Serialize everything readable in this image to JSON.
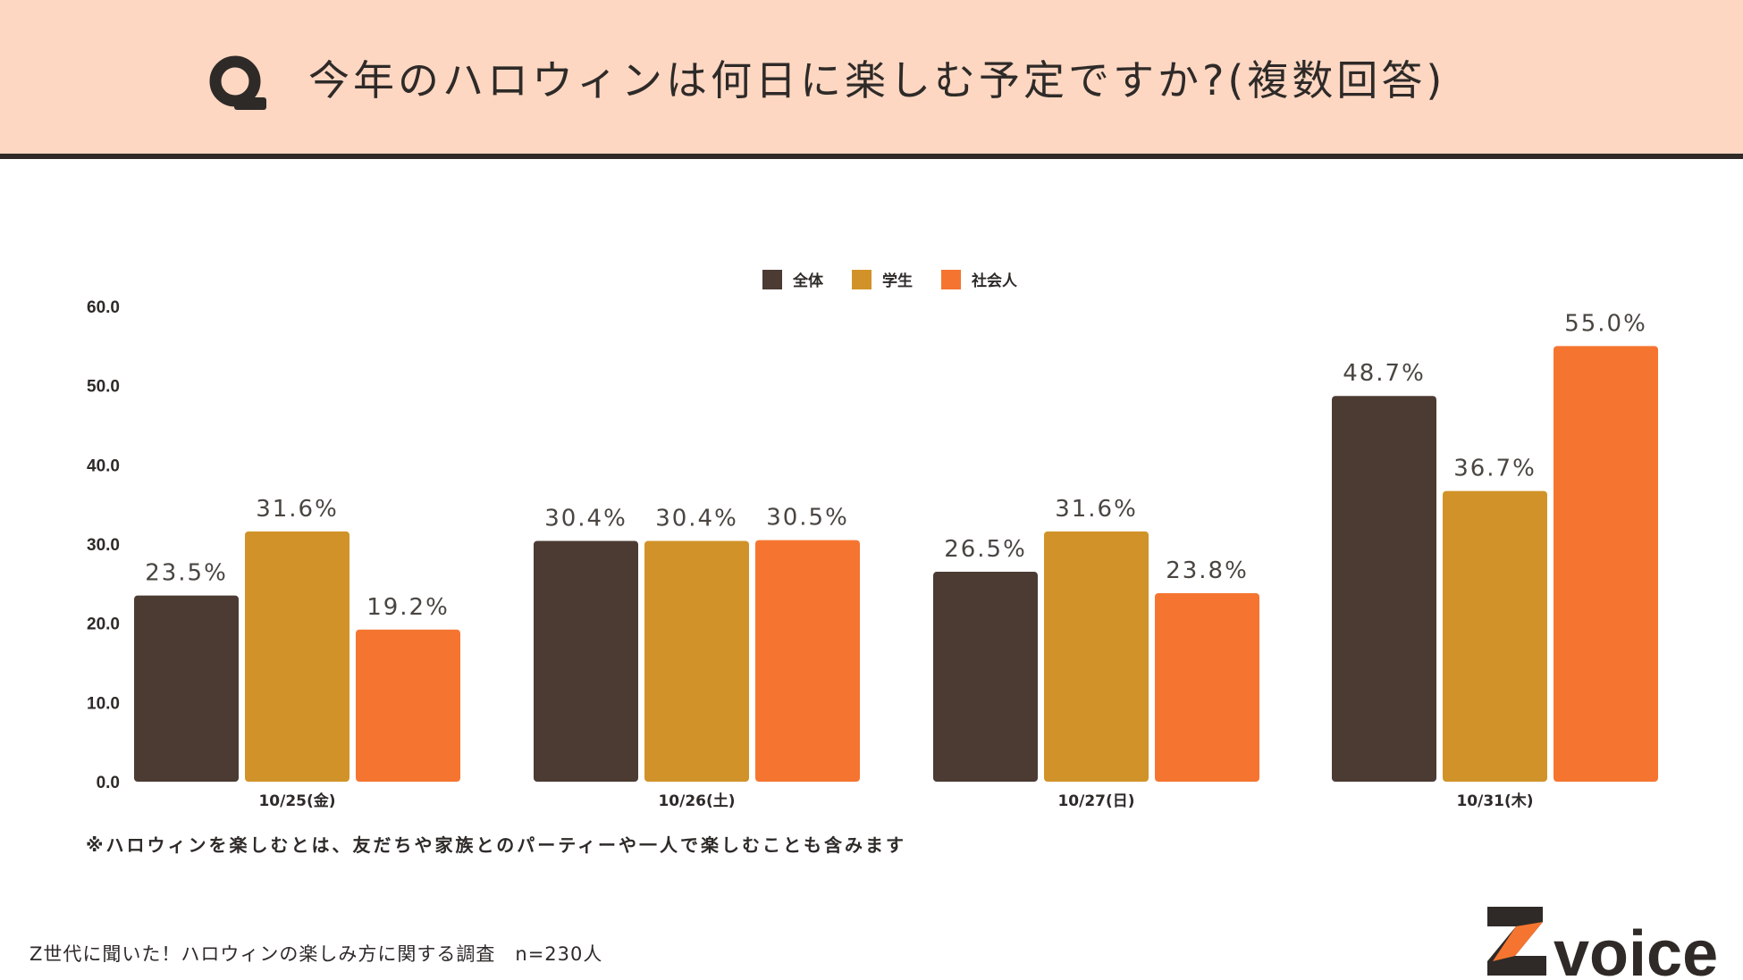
{
  "header": {
    "title": "今年のハロウィンは何日に楽しむ予定ですか?(複数回答)",
    "icon": "q-icon"
  },
  "note": "※ハロウィンを楽しむとは、友だちや家族とのパーティーや一人で楽しむことも含みます",
  "footer": {
    "survey": "Z世代に聞いた！ハロウィンの楽しみ方に関する調査　n=230人",
    "logo_text": "voice",
    "logo_letter": "Z"
  },
  "colors": {
    "header_bg": "#fdd7c2",
    "all": "#4b3b33",
    "student": "#d19329",
    "worker": "#f57530"
  },
  "chart_data": {
    "type": "bar",
    "title": "今年のハロウィンは何日に楽しむ予定ですか?(複数回答)",
    "xlabel": "",
    "ylabel": "",
    "ylim": [
      0,
      60
    ],
    "yticks": [
      "0.0",
      "10.0",
      "20.0",
      "30.0",
      "40.0",
      "50.0",
      "60.0"
    ],
    "grid": false,
    "legend_position": "top-center",
    "categories": [
      "10/25(金)",
      "10/26(土)",
      "10/27(日)",
      "10/31(木)"
    ],
    "series": [
      {
        "name": "全体",
        "color": "#4b3b33",
        "values": [
          23.5,
          30.4,
          26.5,
          48.7
        ],
        "labels": [
          "23.5%",
          "30.4%",
          "26.5%",
          "48.7%"
        ]
      },
      {
        "name": "学生",
        "color": "#d19329",
        "values": [
          31.6,
          30.4,
          31.6,
          36.7
        ],
        "labels": [
          "31.6%",
          "30.4%",
          "31.6%",
          "36.7%"
        ]
      },
      {
        "name": "社会人",
        "color": "#f57530",
        "values": [
          19.2,
          30.5,
          23.8,
          55.0
        ],
        "labels": [
          "19.2%",
          "30.5%",
          "23.8%",
          "55.0%"
        ]
      }
    ]
  }
}
